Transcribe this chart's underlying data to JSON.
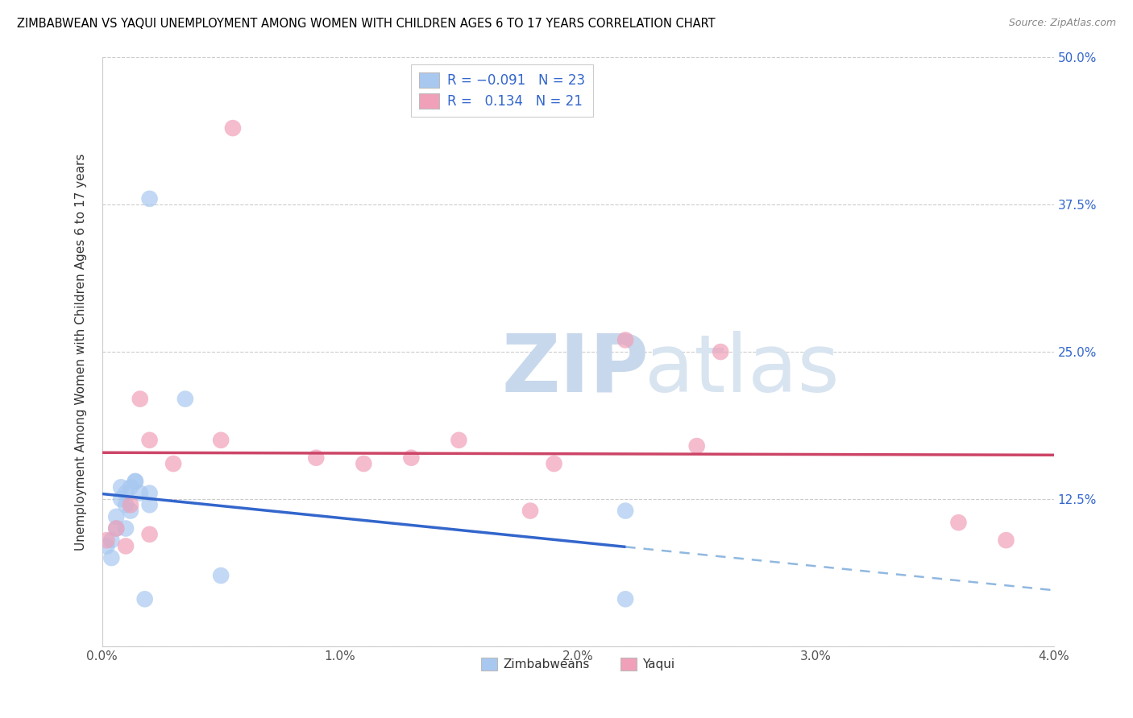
{
  "title": "ZIMBABWEAN VS YAQUI UNEMPLOYMENT AMONG WOMEN WITH CHILDREN AGES 6 TO 17 YEARS CORRELATION CHART",
  "source": "Source: ZipAtlas.com",
  "ylabel": "Unemployment Among Women with Children Ages 6 to 17 years",
  "xlim": [
    0.0,
    0.04
  ],
  "ylim": [
    0.0,
    0.5
  ],
  "xtick_labels": [
    "0.0%",
    "1.0%",
    "2.0%",
    "3.0%",
    "4.0%"
  ],
  "xtick_vals": [
    0.0,
    0.01,
    0.02,
    0.03,
    0.04
  ],
  "ytick_labels": [
    "",
    "12.5%",
    "25.0%",
    "37.5%",
    "50.0%"
  ],
  "ytick_vals": [
    0.0,
    0.125,
    0.25,
    0.375,
    0.5
  ],
  "legend_R1": "-0.091",
  "legend_N1": "23",
  "legend_R2": "0.134",
  "legend_N2": "21",
  "blue_color": "#A8C8F0",
  "pink_color": "#F0A0B8",
  "line_blue": "#3366CC",
  "line_pink": "#CC4466",
  "dashed_blue": "#90B8E0",
  "zimbabwean_x": [
    0.0002,
    0.0004,
    0.0004,
    0.0006,
    0.0006,
    0.0008,
    0.0008,
    0.001,
    0.001,
    0.001,
    0.0012,
    0.0012,
    0.0014,
    0.0014,
    0.0016,
    0.0018,
    0.002,
    0.002,
    0.002,
    0.0035,
    0.005,
    0.022,
    0.022
  ],
  "zimbabwean_y": [
    0.085,
    0.09,
    0.075,
    0.1,
    0.11,
    0.125,
    0.135,
    0.1,
    0.12,
    0.13,
    0.115,
    0.135,
    0.14,
    0.14,
    0.13,
    0.04,
    0.12,
    0.13,
    0.38,
    0.21,
    0.06,
    0.115,
    0.04
  ],
  "yaqui_x": [
    0.0002,
    0.0006,
    0.001,
    0.0012,
    0.0016,
    0.002,
    0.002,
    0.003,
    0.005,
    0.0055,
    0.009,
    0.011,
    0.013,
    0.015,
    0.018,
    0.019,
    0.022,
    0.025,
    0.026,
    0.036,
    0.038
  ],
  "yaqui_y": [
    0.09,
    0.1,
    0.085,
    0.12,
    0.21,
    0.095,
    0.175,
    0.155,
    0.175,
    0.44,
    0.16,
    0.155,
    0.16,
    0.175,
    0.115,
    0.155,
    0.26,
    0.17,
    0.25,
    0.105,
    0.09
  ]
}
